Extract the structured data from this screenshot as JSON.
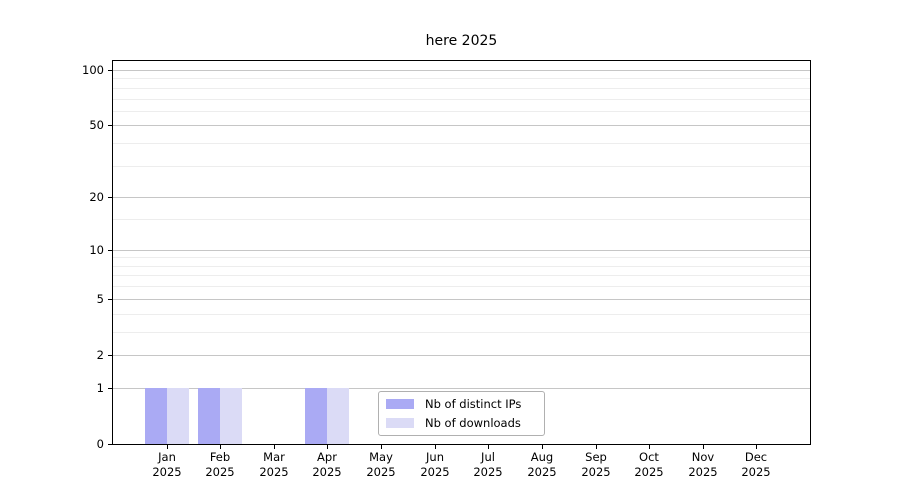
{
  "chart_data": {
    "type": "bar",
    "title": "here 2025",
    "categories": [
      "Jan",
      "Feb",
      "Mar",
      "Apr",
      "May",
      "Jun",
      "Jul",
      "Aug",
      "Sep",
      "Oct",
      "Nov",
      "Dec"
    ],
    "x_tick_year": "2025",
    "series": [
      {
        "name": "Nb of distinct IPs",
        "color": "#aaaaf4",
        "values": [
          1,
          1,
          0,
          1,
          0,
          0,
          0,
          0,
          0,
          0,
          0,
          0
        ]
      },
      {
        "name": "Nb of downloads",
        "color": "#dbdbf6",
        "values": [
          1,
          1,
          0,
          1,
          0,
          0,
          0,
          0,
          0,
          0,
          0,
          0
        ]
      }
    ],
    "xlabel": "",
    "ylabel": "",
    "y_scale": "log1p",
    "ylim": [
      0,
      112
    ],
    "y_major_ticks": [
      0,
      1,
      2,
      5,
      10,
      20,
      50,
      100
    ],
    "y_minor_gridlines": [
      3,
      4,
      6,
      7,
      8,
      9,
      15,
      30,
      40,
      60,
      70,
      80,
      90
    ],
    "grid": true,
    "legend_position": "lower center",
    "colors": {
      "major_grid": "#c6c6c6",
      "minor_grid": "#ededed",
      "axis": "#000000",
      "background": "#ffffff"
    }
  }
}
